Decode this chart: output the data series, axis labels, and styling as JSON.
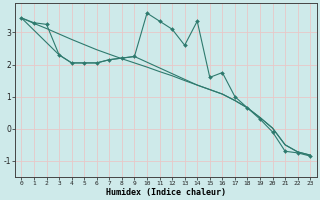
{
  "xlabel": "Humidex (Indice chaleur)",
  "xlim": [
    -0.5,
    23.5
  ],
  "ylim": [
    -1.5,
    3.9
  ],
  "bg_color": "#ceeaea",
  "grid_color": "#b8d8d8",
  "line_color": "#2e7a6e",
  "line1_x": [
    0,
    1,
    2,
    3,
    4,
    5,
    6,
    7,
    8,
    9,
    10,
    11,
    12,
    13,
    14,
    15,
    16,
    17,
    18,
    19,
    20,
    21,
    22,
    23
  ],
  "line1_y": [
    3.45,
    3.3,
    3.25,
    2.3,
    2.05,
    2.05,
    2.05,
    2.15,
    2.2,
    2.25,
    3.6,
    3.35,
    3.1,
    2.6,
    3.35,
    1.6,
    1.75,
    1.0,
    0.65,
    0.3,
    -0.1,
    -0.7,
    -0.75,
    -0.85
  ],
  "line2_x": [
    0,
    1,
    2,
    3,
    4,
    5,
    6,
    7,
    8,
    9,
    10,
    11,
    12,
    13,
    14,
    15,
    16,
    17,
    18,
    19,
    20,
    21,
    22,
    23
  ],
  "line2_y": [
    3.45,
    3.28,
    3.12,
    2.95,
    2.78,
    2.62,
    2.46,
    2.32,
    2.18,
    2.05,
    1.92,
    1.78,
    1.65,
    1.5,
    1.36,
    1.22,
    1.08,
    0.88,
    0.65,
    0.35,
    0.02,
    -0.5,
    -0.72,
    -0.82
  ],
  "line3_x": [
    0,
    3,
    4,
    5,
    6,
    7,
    8,
    9,
    14,
    15,
    16,
    17,
    18,
    19,
    20,
    21,
    22,
    23
  ],
  "line3_y": [
    3.45,
    2.3,
    2.05,
    2.05,
    2.05,
    2.15,
    2.2,
    2.25,
    1.36,
    1.22,
    1.08,
    0.88,
    0.65,
    0.35,
    0.02,
    -0.5,
    -0.72,
    -0.82
  ],
  "xticks": [
    0,
    1,
    2,
    3,
    4,
    5,
    6,
    7,
    8,
    9,
    10,
    11,
    12,
    13,
    14,
    15,
    16,
    17,
    18,
    19,
    20,
    21,
    22,
    23
  ],
  "yticks": [
    -1,
    0,
    1,
    2,
    3
  ]
}
